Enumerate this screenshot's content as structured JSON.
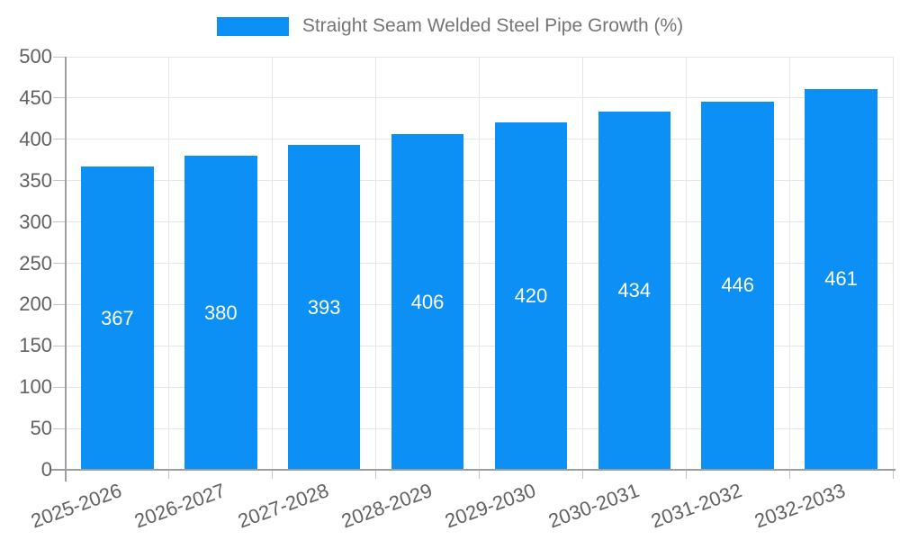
{
  "chart_data": {
    "type": "bar",
    "title": "",
    "legend_label": "Straight Seam Welded Steel Pipe Growth (%)",
    "legend_position": "top",
    "categories": [
      "2025-2026",
      "2026-2027",
      "2027-2028",
      "2028-2029",
      "2029-2030",
      "2030-2031",
      "2031-2032",
      "2032-2033"
    ],
    "values": [
      367,
      380,
      393,
      406,
      420,
      434,
      446,
      461
    ],
    "xlabel": "",
    "ylabel": "",
    "ylim": [
      0,
      500
    ],
    "ytick_step": 50,
    "ytick_labels": [
      "0",
      "50",
      "100",
      "150",
      "200",
      "250",
      "300",
      "350",
      "400",
      "450",
      "500"
    ],
    "grid": true,
    "value_labels_shown": true,
    "value_label_position": "center-of-bar"
  },
  "colors": {
    "bar": "#0d90f5",
    "value_label": "#ffffff",
    "axis_text": "#616161",
    "legend_text": "#757575",
    "gridline": "#e6e6e6",
    "tick": "#c4c4c4",
    "axis_line": "#9e9e9e",
    "background": "#ffffff"
  }
}
